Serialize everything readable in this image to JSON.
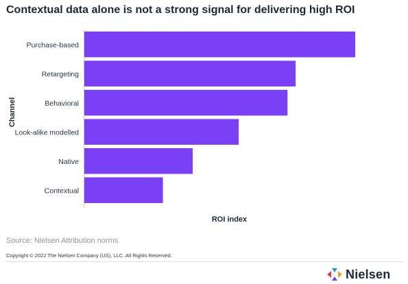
{
  "chart_data": {
    "type": "bar",
    "orientation": "horizontal",
    "title": "Contextual data alone is not a strong signal for delivering high ROI",
    "xlabel": "ROI index",
    "ylabel": "Channel",
    "categories": [
      "Purchase-based",
      "Retargeting",
      "Behavioral",
      "Look-alike modelled",
      "Native",
      "Contextual"
    ],
    "values": [
      100,
      78,
      75,
      57,
      40,
      29
    ],
    "xlim": [
      0,
      100
    ],
    "grid": false,
    "bar_color": "#7b3ff5"
  },
  "footer": {
    "source": "Source: Nielsen Attribution norms",
    "copyright": "Copyright © 2022 The Nielsen Company (US), LLC. All Rights Reserved.",
    "brand": "Nielsen",
    "logo_colors": [
      "#e8364f",
      "#2a8fe3",
      "#7b3ff5",
      "#f2a31b"
    ]
  }
}
